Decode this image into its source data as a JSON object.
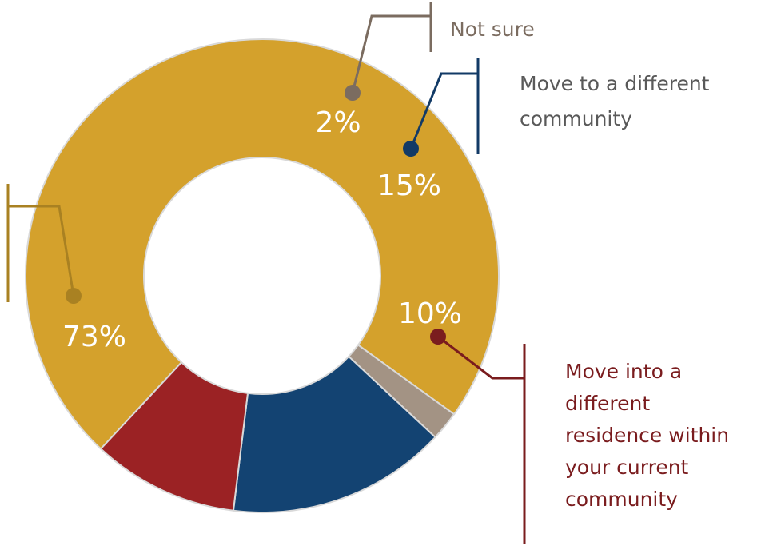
{
  "chart_data": {
    "type": "pie",
    "style": "donut",
    "title": "",
    "categories": [
      "",
      "Not sure",
      "Move to a different community",
      "Move into a different residence within your current community"
    ],
    "series": [
      {
        "values": [
          73,
          2,
          15,
          10
        ],
        "labels": [
          "73%",
          "2%",
          "15%",
          "10%"
        ]
      }
    ],
    "legend": "none",
    "callout_lines": {
      "slice_0": "",
      "slice_1": [
        "Not sure"
      ],
      "slice_2": [
        "Move to a different",
        "community"
      ],
      "slice_3": [
        "Move into a",
        "different",
        "residence within",
        "your current",
        "community"
      ]
    }
  },
  "colors": {
    "slice_0": "#D4A12C",
    "slice_1": "#A39384",
    "slice_2": "#134372",
    "slice_3": "#9B2224",
    "callout_0": "#A98122",
    "callout_1": "#7B6C60",
    "callout_2": "#123A66",
    "callout_3": "#7A1C1E",
    "outline": "#D9D9D9",
    "percent_text": "#FFFFFF"
  }
}
